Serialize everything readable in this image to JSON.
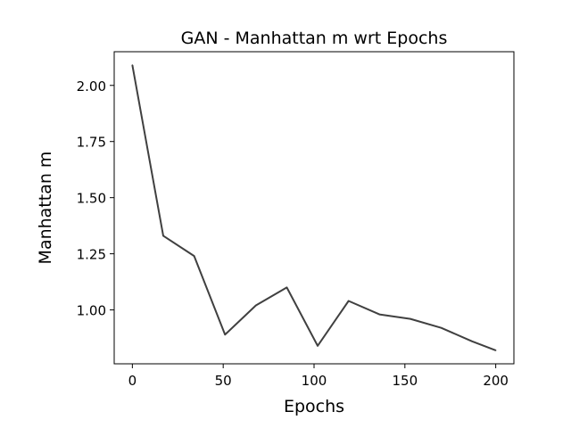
{
  "chart_data": {
    "type": "line",
    "title": "GAN - Manhattan m wrt Epochs",
    "xlabel": "Epochs",
    "ylabel": "Manhattan m",
    "xlim": [
      -10,
      210
    ],
    "ylim": [
      0.76,
      2.15
    ],
    "xticks": [
      0,
      50,
      100,
      150,
      200
    ],
    "xtick_labels": [
      "0",
      "50",
      "100",
      "150",
      "200"
    ],
    "yticks": [
      1.0,
      1.25,
      1.5,
      1.75,
      2.0
    ],
    "ytick_labels": [
      "1.00",
      "1.25",
      "1.50",
      "1.75",
      "2.00"
    ],
    "grid": false,
    "series": [
      {
        "color": "#404040",
        "x": [
          0,
          17,
          34,
          51,
          68,
          85,
          102,
          119,
          136,
          153,
          170,
          187,
          200
        ],
        "y": [
          2.09,
          1.33,
          1.24,
          0.89,
          1.02,
          1.1,
          0.84,
          1.04,
          0.98,
          0.96,
          0.92,
          0.86,
          0.82
        ]
      }
    ]
  }
}
